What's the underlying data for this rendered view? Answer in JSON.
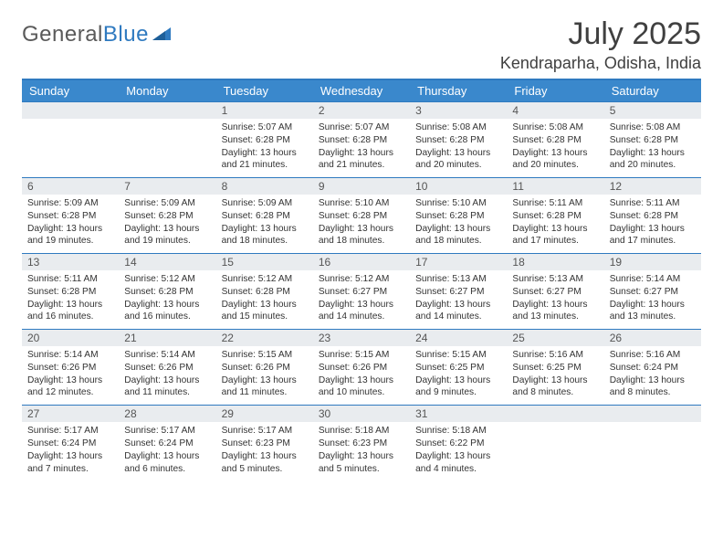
{
  "brand": {
    "text1": "General",
    "text2": "Blue"
  },
  "title": "July 2025",
  "location": "Kendraparha, Odisha, India",
  "columns": [
    "Sunday",
    "Monday",
    "Tuesday",
    "Wednesday",
    "Thursday",
    "Friday",
    "Saturday"
  ],
  "colors": {
    "header_bg": "#3a88cc",
    "border": "#2f7ac0",
    "daynum_bg": "#e9ecef",
    "text": "#333333",
    "title": "#404040"
  },
  "weeks": [
    [
      null,
      null,
      {
        "n": "1",
        "sr": "5:07 AM",
        "ss": "6:28 PM",
        "dl": "13 hours and 21 minutes."
      },
      {
        "n": "2",
        "sr": "5:07 AM",
        "ss": "6:28 PM",
        "dl": "13 hours and 21 minutes."
      },
      {
        "n": "3",
        "sr": "5:08 AM",
        "ss": "6:28 PM",
        "dl": "13 hours and 20 minutes."
      },
      {
        "n": "4",
        "sr": "5:08 AM",
        "ss": "6:28 PM",
        "dl": "13 hours and 20 minutes."
      },
      {
        "n": "5",
        "sr": "5:08 AM",
        "ss": "6:28 PM",
        "dl": "13 hours and 20 minutes."
      }
    ],
    [
      {
        "n": "6",
        "sr": "5:09 AM",
        "ss": "6:28 PM",
        "dl": "13 hours and 19 minutes."
      },
      {
        "n": "7",
        "sr": "5:09 AM",
        "ss": "6:28 PM",
        "dl": "13 hours and 19 minutes."
      },
      {
        "n": "8",
        "sr": "5:09 AM",
        "ss": "6:28 PM",
        "dl": "13 hours and 18 minutes."
      },
      {
        "n": "9",
        "sr": "5:10 AM",
        "ss": "6:28 PM",
        "dl": "13 hours and 18 minutes."
      },
      {
        "n": "10",
        "sr": "5:10 AM",
        "ss": "6:28 PM",
        "dl": "13 hours and 18 minutes."
      },
      {
        "n": "11",
        "sr": "5:11 AM",
        "ss": "6:28 PM",
        "dl": "13 hours and 17 minutes."
      },
      {
        "n": "12",
        "sr": "5:11 AM",
        "ss": "6:28 PM",
        "dl": "13 hours and 17 minutes."
      }
    ],
    [
      {
        "n": "13",
        "sr": "5:11 AM",
        "ss": "6:28 PM",
        "dl": "13 hours and 16 minutes."
      },
      {
        "n": "14",
        "sr": "5:12 AM",
        "ss": "6:28 PM",
        "dl": "13 hours and 16 minutes."
      },
      {
        "n": "15",
        "sr": "5:12 AM",
        "ss": "6:28 PM",
        "dl": "13 hours and 15 minutes."
      },
      {
        "n": "16",
        "sr": "5:12 AM",
        "ss": "6:27 PM",
        "dl": "13 hours and 14 minutes."
      },
      {
        "n": "17",
        "sr": "5:13 AM",
        "ss": "6:27 PM",
        "dl": "13 hours and 14 minutes."
      },
      {
        "n": "18",
        "sr": "5:13 AM",
        "ss": "6:27 PM",
        "dl": "13 hours and 13 minutes."
      },
      {
        "n": "19",
        "sr": "5:14 AM",
        "ss": "6:27 PM",
        "dl": "13 hours and 13 minutes."
      }
    ],
    [
      {
        "n": "20",
        "sr": "5:14 AM",
        "ss": "6:26 PM",
        "dl": "13 hours and 12 minutes."
      },
      {
        "n": "21",
        "sr": "5:14 AM",
        "ss": "6:26 PM",
        "dl": "13 hours and 11 minutes."
      },
      {
        "n": "22",
        "sr": "5:15 AM",
        "ss": "6:26 PM",
        "dl": "13 hours and 11 minutes."
      },
      {
        "n": "23",
        "sr": "5:15 AM",
        "ss": "6:26 PM",
        "dl": "13 hours and 10 minutes."
      },
      {
        "n": "24",
        "sr": "5:15 AM",
        "ss": "6:25 PM",
        "dl": "13 hours and 9 minutes."
      },
      {
        "n": "25",
        "sr": "5:16 AM",
        "ss": "6:25 PM",
        "dl": "13 hours and 8 minutes."
      },
      {
        "n": "26",
        "sr": "5:16 AM",
        "ss": "6:24 PM",
        "dl": "13 hours and 8 minutes."
      }
    ],
    [
      {
        "n": "27",
        "sr": "5:17 AM",
        "ss": "6:24 PM",
        "dl": "13 hours and 7 minutes."
      },
      {
        "n": "28",
        "sr": "5:17 AM",
        "ss": "6:24 PM",
        "dl": "13 hours and 6 minutes."
      },
      {
        "n": "29",
        "sr": "5:17 AM",
        "ss": "6:23 PM",
        "dl": "13 hours and 5 minutes."
      },
      {
        "n": "30",
        "sr": "5:18 AM",
        "ss": "6:23 PM",
        "dl": "13 hours and 5 minutes."
      },
      {
        "n": "31",
        "sr": "5:18 AM",
        "ss": "6:22 PM",
        "dl": "13 hours and 4 minutes."
      },
      null,
      null
    ]
  ],
  "labels": {
    "sunrise": "Sunrise: ",
    "sunset": "Sunset: ",
    "daylight": "Daylight: "
  }
}
